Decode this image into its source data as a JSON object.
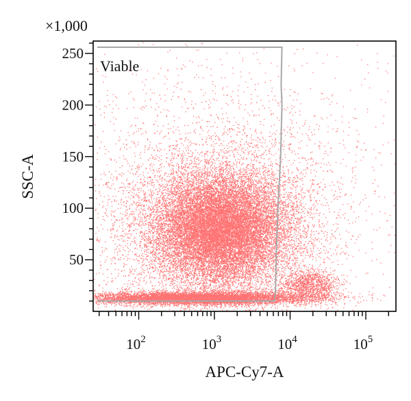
{
  "chart_data": {
    "type": "scatter",
    "title": "",
    "xlabel": "APC-Cy7-A",
    "ylabel": "SSC-A",
    "y_multiplier": "×1,000",
    "x_scale": "log",
    "x_range": [
      25,
      250000
    ],
    "y_range": [
      0,
      262
    ],
    "x_ticks": [
      {
        "value": 100,
        "base": "10",
        "exp": "2"
      },
      {
        "value": 1000,
        "base": "10",
        "exp": "3"
      },
      {
        "value": 10000,
        "base": "10",
        "exp": "4"
      },
      {
        "value": 100000,
        "base": "10",
        "exp": "5"
      }
    ],
    "y_ticks": [
      {
        "value": 50,
        "label": "50"
      },
      {
        "value": 100,
        "label": "100"
      },
      {
        "value": 150,
        "label": "150"
      },
      {
        "value": 200,
        "label": "200"
      },
      {
        "value": 250,
        "label": "250"
      }
    ],
    "point_color": "#ff0000",
    "gate": {
      "name": "Viable",
      "color": "#a8a8a8",
      "vertices": [
        [
          25,
          256
        ],
        [
          7800,
          256
        ],
        [
          7600,
          220
        ],
        [
          7800,
          200
        ],
        [
          7500,
          150
        ],
        [
          6900,
          100
        ],
        [
          6600,
          60
        ],
        [
          6400,
          20
        ],
        [
          6200,
          10
        ],
        [
          25,
          10
        ]
      ]
    },
    "populations": [
      {
        "x_center": 1200,
        "y_center": 80,
        "log_spread": 0.42,
        "y_spread": 26,
        "count": 14000
      },
      {
        "x_center": 1100,
        "y_center": 80,
        "log_spread": 0.68,
        "y_spread": 42,
        "count": 6500
      },
      {
        "x_center": 600,
        "y_center": 13,
        "log_spread": 0.75,
        "y_spread": 3,
        "count": 8000
      },
      {
        "x_center": 18000,
        "y_center": 25,
        "log_spread": 0.18,
        "y_spread": 8,
        "count": 1200
      },
      {
        "x_center": 1000,
        "y_center": 120,
        "log_spread": 1.2,
        "y_spread": 70,
        "count": 2200
      }
    ]
  }
}
